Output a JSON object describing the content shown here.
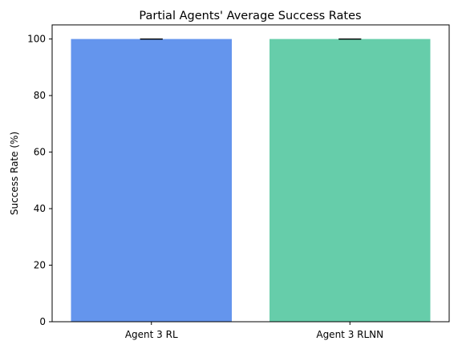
{
  "chart_data": {
    "type": "bar",
    "title": "Partial Agents' Average Success Rates",
    "xlabel": "",
    "ylabel": "Success Rate (%)",
    "categories": [
      "Agent 3 RL",
      "Agent 3 RLNN"
    ],
    "values": [
      100,
      100
    ],
    "error": [
      0,
      0
    ],
    "colors": [
      "#6495ED",
      "#66CDAA"
    ],
    "ylim": [
      0,
      105
    ],
    "yticks": [
      0,
      20,
      40,
      60,
      80,
      100
    ],
    "grid": false,
    "legend": "none"
  }
}
